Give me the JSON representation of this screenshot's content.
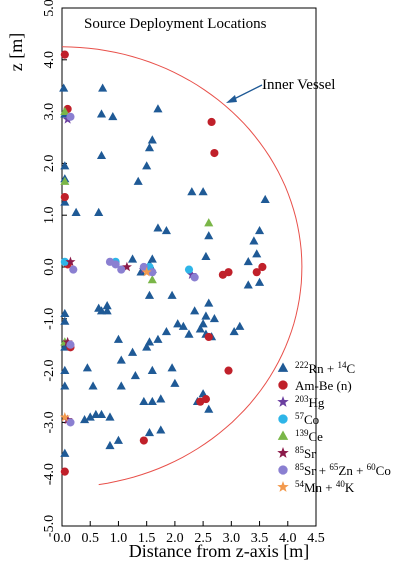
{
  "chart_data": {
    "type": "scatter",
    "title": "Source Deployment Locations",
    "xlabel": "Distance from z-axis [m]",
    "ylabel": "z [m]",
    "xlim": [
      0.0,
      4.5
    ],
    "ylim": [
      -5.0,
      5.0
    ],
    "x_ticks": [
      "0.0",
      "0.5",
      "1.0",
      "1.5",
      "2.0",
      "2.5",
      "3.0",
      "3.5",
      "4.0",
      "4.5"
    ],
    "y_ticks": [
      "-5.0",
      "-4.0",
      "-3.0",
      "-2.0",
      "-1.0",
      "0.0",
      "1.0",
      "2.0",
      "3.0",
      "4.0",
      "5.0"
    ],
    "grid": false,
    "legend_position": "bottom-right",
    "annotation": {
      "text": "Inner Vessel",
      "arrow_to": [
        2.9,
        3.4
      ]
    },
    "vessel": {
      "radius": 4.25,
      "z_top": 4.4,
      "z_bottom": -4.2,
      "color": "#e8504a"
    },
    "series": [
      {
        "name": "222Rn + 14C",
        "label_parts": [
          [
            "222",
            "sup"
          ],
          [
            "Rn + ",
            ""
          ],
          [
            "14",
            "sup"
          ],
          [
            "C",
            ""
          ]
        ],
        "marker": "triangle",
        "color": "#1f5a96",
        "x": [
          0.03,
          0.72,
          0.05,
          0.7,
          0.9,
          1.7,
          0.05,
          0.7,
          1.5,
          1.55,
          1.6,
          0.05,
          1.35,
          2.3,
          2.5,
          0.05,
          0.25,
          0.65,
          1.7,
          1.85,
          2.6,
          3.5,
          3.6,
          1.55,
          1.6,
          1.4,
          3.45,
          3.4,
          3.3,
          3.5,
          3.3,
          1.25,
          1.6,
          2.55,
          0.05,
          0.7,
          0.8,
          1.55,
          1.95,
          2.6,
          2.35,
          2.55,
          2.5,
          2.7,
          0.05,
          0.65,
          0.8,
          1.0,
          1.55,
          1.85,
          2.05,
          2.15,
          3.05,
          3.15,
          0.05,
          0.45,
          1.05,
          1.25,
          1.5,
          1.7,
          2.25,
          2.45,
          2.55,
          2.65,
          0.05,
          0.55,
          1.05,
          1.3,
          1.6,
          1.95,
          2.0,
          2.4,
          2.5,
          0.05,
          0.4,
          0.5,
          0.6,
          0.7,
          0.85,
          1.45,
          1.6,
          1.75,
          2.6,
          0.85,
          1.0,
          1.55,
          1.75,
          0.05
        ],
        "y": [
          3.45,
          3.45,
          2.95,
          2.95,
          2.9,
          3.05,
          1.95,
          2.15,
          1.95,
          2.3,
          2.45,
          1.7,
          1.65,
          1.45,
          1.45,
          1.25,
          1.05,
          1.05,
          0.75,
          0.7,
          0.6,
          0.7,
          1.3,
          0.05,
          -0.05,
          -0.1,
          0.25,
          0.5,
          -0.35,
          -0.3,
          0.1,
          0.15,
          0.15,
          0.2,
          -0.9,
          -0.85,
          -0.85,
          -0.55,
          -0.55,
          -0.7,
          -0.85,
          -0.95,
          -1.1,
          -1.0,
          -1.05,
          -0.8,
          -0.75,
          -1.4,
          -1.45,
          -1.25,
          -1.1,
          -1.15,
          -1.25,
          -1.15,
          -1.55,
          -1.95,
          -1.8,
          -1.65,
          -1.55,
          -1.4,
          -1.3,
          -1.2,
          -1.3,
          -1.35,
          -2.0,
          -2.3,
          -2.3,
          -2.1,
          -2.0,
          -1.95,
          -2.25,
          -2.6,
          -2.45,
          -2.3,
          -2.95,
          -2.9,
          -2.85,
          -2.85,
          -2.9,
          -2.6,
          -2.6,
          -2.55,
          -2.75,
          -3.45,
          -3.35,
          -3.2,
          -3.15,
          -3.6
        ]
      },
      {
        "name": "Am-Be (n)",
        "label_parts": [
          [
            "Am-Be (n)",
            ""
          ]
        ],
        "marker": "circle",
        "color": "#c0202a",
        "x": [
          0.05,
          0.1,
          0.05,
          2.65,
          2.7,
          0.1,
          2.85,
          2.95,
          3.45,
          3.55,
          2.6,
          0.15,
          2.95,
          2.45,
          2.55,
          0.05,
          1.45
        ],
        "y": [
          4.1,
          3.05,
          1.35,
          2.8,
          2.2,
          0.05,
          -0.15,
          -0.1,
          -0.1,
          0.0,
          -1.35,
          -1.55,
          -2.0,
          -2.6,
          -2.55,
          -3.95,
          -3.35
        ]
      },
      {
        "name": "203Hg",
        "label_parts": [
          [
            "203",
            "sup"
          ],
          [
            "Hg",
            ""
          ]
        ],
        "marker": "star",
        "color": "#6b3fa0",
        "x": [
          0.1,
          1.45,
          2.3
        ],
        "y": [
          2.85,
          -0.05,
          -0.15
        ]
      },
      {
        "name": "57Co",
        "label_parts": [
          [
            "57",
            "sup"
          ],
          [
            "Co",
            ""
          ]
        ],
        "marker": "circle",
        "color": "#2eb5e8",
        "x": [
          0.05,
          0.95,
          1.55,
          2.25
        ],
        "y": [
          0.1,
          0.1,
          0.0,
          -0.05
        ]
      },
      {
        "name": "139Ce",
        "label_parts": [
          [
            "139",
            "sup"
          ],
          [
            "Ce",
            ""
          ]
        ],
        "marker": "triangle",
        "color": "#7ab648",
        "x": [
          0.05,
          0.05,
          2.6,
          0.05,
          1.6
        ],
        "y": [
          3.0,
          1.65,
          0.85,
          -1.45,
          -0.25
        ]
      },
      {
        "name": "85Sr",
        "label_parts": [
          [
            "85",
            "sup"
          ],
          [
            "Sr",
            ""
          ]
        ],
        "marker": "star",
        "color": "#8b1a4a",
        "x": [
          0.15,
          1.15,
          0.1,
          0.1
        ],
        "y": [
          0.1,
          0.0,
          -1.45,
          -2.95
        ]
      },
      {
        "name": "85Sr + 65Zn + 60Co",
        "label_parts": [
          [
            "85",
            "sup"
          ],
          [
            "Sr + ",
            ""
          ],
          [
            "65",
            "sup"
          ],
          [
            "Zn + ",
            ""
          ],
          [
            "60",
            "sup"
          ],
          [
            "Co",
            ""
          ]
        ],
        "marker": "circle",
        "color": "#8a7fd1",
        "x": [
          0.15,
          0.2,
          0.85,
          0.95,
          1.05,
          1.45,
          1.6,
          2.35,
          0.15,
          0.15
        ],
        "y": [
          2.9,
          -0.05,
          0.1,
          0.05,
          -0.05,
          0.0,
          -0.1,
          -0.2,
          -1.5,
          -3.0
        ]
      },
      {
        "name": "54Mn + 40K",
        "label_parts": [
          [
            "54",
            "sup"
          ],
          [
            "Mn + ",
            ""
          ],
          [
            "40",
            "sup"
          ],
          [
            "K",
            ""
          ]
        ],
        "marker": "star",
        "color": "#f39a4e",
        "x": [
          0.05,
          1.5
        ],
        "y": [
          -2.9,
          -0.1
        ]
      }
    ]
  }
}
